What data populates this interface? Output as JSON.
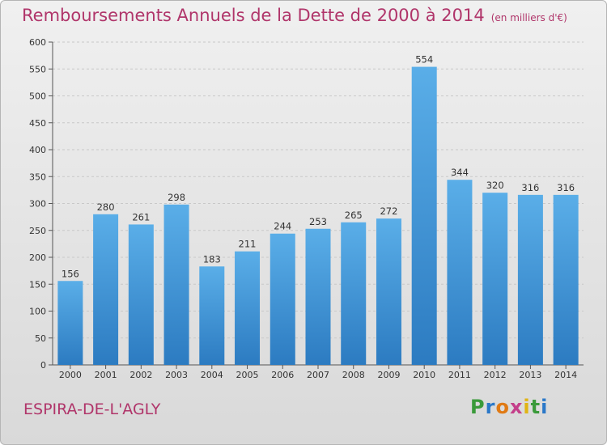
{
  "header": {
    "title": "Remboursements Annuels de la Dette de 2000 à 2014",
    "unit": "(en milliers d'€)"
  },
  "footer": {
    "city": "ESPIRA-DE-L'AGLY",
    "logo_text": "Proxiti"
  },
  "colors": {
    "title": "#b0356a",
    "bar_top": "#5aaee8",
    "bar_bottom": "#2c7bc1",
    "grid": "#c8c8c8"
  },
  "chart_data": {
    "type": "bar",
    "title": "Remboursements Annuels de la Dette de 2000 à 2014",
    "subtitle": "(en milliers d'€)",
    "xlabel": "",
    "ylabel": "",
    "categories": [
      "2000",
      "2001",
      "2002",
      "2003",
      "2004",
      "2005",
      "2006",
      "2007",
      "2008",
      "2009",
      "2010",
      "2011",
      "2012",
      "2013",
      "2014"
    ],
    "values": [
      156,
      280,
      261,
      298,
      183,
      211,
      244,
      253,
      265,
      272,
      554,
      344,
      320,
      316,
      316
    ],
    "ylim": [
      0,
      600
    ],
    "yticks": [
      0,
      50,
      100,
      150,
      200,
      250,
      300,
      350,
      400,
      450,
      500,
      550,
      600
    ],
    "grid": true,
    "data_labels": true
  }
}
